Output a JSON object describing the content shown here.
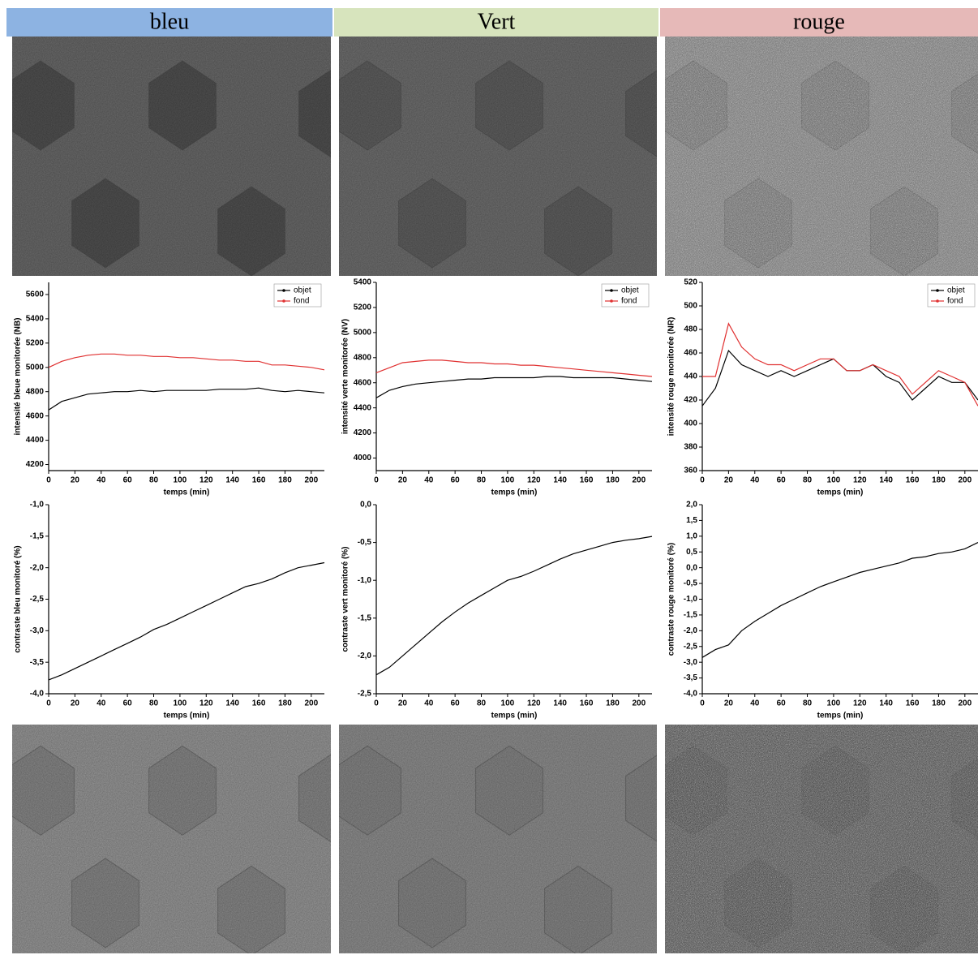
{
  "headers": [
    "bleu",
    "Vert",
    "rouge"
  ],
  "chart_data": [
    {
      "type": "line",
      "xlabel": "temps (min)",
      "ylabel": "intensité bleue monitorée (NB)",
      "x": [
        0,
        10,
        20,
        30,
        40,
        50,
        60,
        70,
        80,
        90,
        100,
        110,
        120,
        130,
        140,
        150,
        160,
        170,
        180,
        190,
        200,
        210
      ],
      "xlim": [
        0,
        210
      ],
      "xticks": [
        0,
        20,
        40,
        60,
        80,
        100,
        120,
        140,
        160,
        180,
        200
      ],
      "ylim": [
        4150,
        5700
      ],
      "yticks": [
        4200,
        4400,
        4600,
        4800,
        5000,
        5200,
        5400,
        5600
      ],
      "legend": "upper right",
      "series": [
        {
          "name": "objet",
          "color": "#000000",
          "values": [
            4650,
            4720,
            4750,
            4780,
            4790,
            4800,
            4800,
            4810,
            4800,
            4810,
            4810,
            4810,
            4810,
            4820,
            4820,
            4820,
            4830,
            4810,
            4800,
            4810,
            4800,
            4790
          ]
        },
        {
          "name": "fond",
          "color": "#e03030",
          "values": [
            5000,
            5050,
            5080,
            5100,
            5110,
            5110,
            5100,
            5100,
            5090,
            5090,
            5080,
            5080,
            5070,
            5060,
            5060,
            5050,
            5050,
            5020,
            5020,
            5010,
            5000,
            4980
          ]
        }
      ]
    },
    {
      "type": "line",
      "xlabel": "temps (min)",
      "ylabel": "intensité verte monitorée (NV)",
      "x": [
        0,
        10,
        20,
        30,
        40,
        50,
        60,
        70,
        80,
        90,
        100,
        110,
        120,
        130,
        140,
        150,
        160,
        170,
        180,
        190,
        200,
        210
      ],
      "xlim": [
        0,
        210
      ],
      "xticks": [
        0,
        20,
        40,
        60,
        80,
        100,
        120,
        140,
        160,
        180,
        200
      ],
      "ylim": [
        3900,
        5400
      ],
      "yticks": [
        4000,
        4200,
        4400,
        4600,
        4800,
        5000,
        5200,
        5400
      ],
      "legend": "upper right",
      "series": [
        {
          "name": "objet",
          "color": "#000000",
          "values": [
            4480,
            4540,
            4570,
            4590,
            4600,
            4610,
            4620,
            4630,
            4630,
            4640,
            4640,
            4640,
            4640,
            4650,
            4650,
            4640,
            4640,
            4640,
            4640,
            4630,
            4620,
            4610
          ]
        },
        {
          "name": "fond",
          "color": "#e03030",
          "values": [
            4680,
            4720,
            4760,
            4770,
            4780,
            4780,
            4770,
            4760,
            4760,
            4750,
            4750,
            4740,
            4740,
            4730,
            4720,
            4710,
            4700,
            4690,
            4680,
            4670,
            4660,
            4650
          ]
        }
      ]
    },
    {
      "type": "line",
      "xlabel": "temps (min)",
      "ylabel": "intensité rouge monitorée (NR)",
      "x": [
        0,
        10,
        20,
        30,
        40,
        50,
        60,
        70,
        80,
        90,
        100,
        110,
        120,
        130,
        140,
        150,
        160,
        170,
        180,
        190,
        200,
        210
      ],
      "xlim": [
        0,
        210
      ],
      "xticks": [
        0,
        20,
        40,
        60,
        80,
        100,
        120,
        140,
        160,
        180,
        200
      ],
      "ylim": [
        360,
        520
      ],
      "yticks": [
        360,
        380,
        400,
        420,
        440,
        460,
        480,
        500,
        520
      ],
      "legend": "upper right",
      "series": [
        {
          "name": "objet",
          "color": "#000000",
          "values": [
            415,
            430,
            462,
            450,
            445,
            440,
            445,
            440,
            445,
            450,
            455,
            445,
            445,
            450,
            440,
            435,
            420,
            430,
            440,
            435,
            435,
            420
          ]
        },
        {
          "name": "fond",
          "color": "#e03030",
          "values": [
            440,
            440,
            485,
            465,
            455,
            450,
            450,
            445,
            450,
            455,
            455,
            445,
            445,
            450,
            445,
            440,
            425,
            435,
            445,
            440,
            435,
            415
          ]
        }
      ]
    },
    {
      "type": "line",
      "xlabel": "temps (min)",
      "ylabel": "contraste bleu monitoré (%)",
      "x": [
        0,
        10,
        20,
        30,
        40,
        50,
        60,
        70,
        80,
        90,
        100,
        110,
        120,
        130,
        140,
        150,
        160,
        170,
        180,
        190,
        200,
        210
      ],
      "xlim": [
        0,
        210
      ],
      "xticks": [
        0,
        20,
        40,
        60,
        80,
        100,
        120,
        140,
        160,
        180,
        200
      ],
      "ylim": [
        -4,
        -1
      ],
      "yticks": [
        {
          "value": -4,
          "label": "-4,0"
        },
        {
          "value": -3.5,
          "label": "-3,5"
        },
        {
          "value": -3,
          "label": "-3,0"
        },
        {
          "value": -2.5,
          "label": "-2,5"
        },
        {
          "value": -2,
          "label": "-2,0"
        },
        {
          "value": -1.5,
          "label": "-1,5"
        },
        {
          "value": -1,
          "label": "-1,0"
        }
      ],
      "color": "#000000",
      "values": [
        -3.78,
        -3.7,
        -3.6,
        -3.5,
        -3.4,
        -3.3,
        -3.2,
        -3.1,
        -2.98,
        -2.9,
        -2.8,
        -2.7,
        -2.6,
        -2.5,
        -2.4,
        -2.3,
        -2.25,
        -2.18,
        -2.08,
        -2.0,
        -1.96,
        -1.92
      ]
    },
    {
      "type": "line",
      "xlabel": "temps (min)",
      "ylabel": "contraste vert monitoré (%)",
      "x": [
        0,
        10,
        20,
        30,
        40,
        50,
        60,
        70,
        80,
        90,
        100,
        110,
        120,
        130,
        140,
        150,
        160,
        170,
        180,
        190,
        200,
        210
      ],
      "xlim": [
        0,
        210
      ],
      "xticks": [
        0,
        20,
        40,
        60,
        80,
        100,
        120,
        140,
        160,
        180,
        200
      ],
      "ylim": [
        -2.5,
        0
      ],
      "yticks": [
        {
          "value": -2.5,
          "label": "-2,5"
        },
        {
          "value": -2,
          "label": "-2,0"
        },
        {
          "value": -1.5,
          "label": "-1,5"
        },
        {
          "value": -1,
          "label": "-1,0"
        },
        {
          "value": -0.5,
          "label": "-0,5"
        },
        {
          "value": 0,
          "label": "0,0"
        }
      ],
      "color": "#000000",
      "values": [
        -2.25,
        -2.15,
        -2.0,
        -1.85,
        -1.7,
        -1.55,
        -1.42,
        -1.3,
        -1.2,
        -1.1,
        -1.0,
        -0.95,
        -0.88,
        -0.8,
        -0.72,
        -0.65,
        -0.6,
        -0.55,
        -0.5,
        -0.47,
        -0.45,
        -0.42
      ]
    },
    {
      "type": "line",
      "xlabel": "temps (min)",
      "ylabel": "contraste rouge monitoré (%)",
      "x": [
        0,
        10,
        20,
        30,
        40,
        50,
        60,
        70,
        80,
        90,
        100,
        110,
        120,
        130,
        140,
        150,
        160,
        170,
        180,
        190,
        200,
        210
      ],
      "xlim": [
        0,
        210
      ],
      "xticks": [
        0,
        20,
        40,
        60,
        80,
        100,
        120,
        140,
        160,
        180,
        200
      ],
      "ylim": [
        -4,
        2
      ],
      "yticks": [
        {
          "value": -4,
          "label": "-4,0"
        },
        {
          "value": -3.5,
          "label": "-3,5"
        },
        {
          "value": -3,
          "label": "-3,0"
        },
        {
          "value": -2.5,
          "label": "-2,5"
        },
        {
          "value": -2,
          "label": "-2,0"
        },
        {
          "value": -1.5,
          "label": "-1,5"
        },
        {
          "value": -1,
          "label": "-1,0"
        },
        {
          "value": -0.5,
          "label": "-0,5"
        },
        {
          "value": 0,
          "label": "0,0"
        },
        {
          "value": 0.5,
          "label": "0,5"
        },
        {
          "value": 1,
          "label": "1,0"
        },
        {
          "value": 1.5,
          "label": "1,5"
        },
        {
          "value": 2,
          "label": "2,0"
        }
      ],
      "color": "#000000",
      "values": [
        -2.85,
        -2.6,
        -2.45,
        -2.0,
        -1.7,
        -1.45,
        -1.2,
        -1.0,
        -0.8,
        -0.6,
        -0.45,
        -0.3,
        -0.15,
        -0.05,
        0.05,
        0.15,
        0.3,
        0.35,
        0.45,
        0.5,
        0.6,
        0.8
      ]
    }
  ]
}
